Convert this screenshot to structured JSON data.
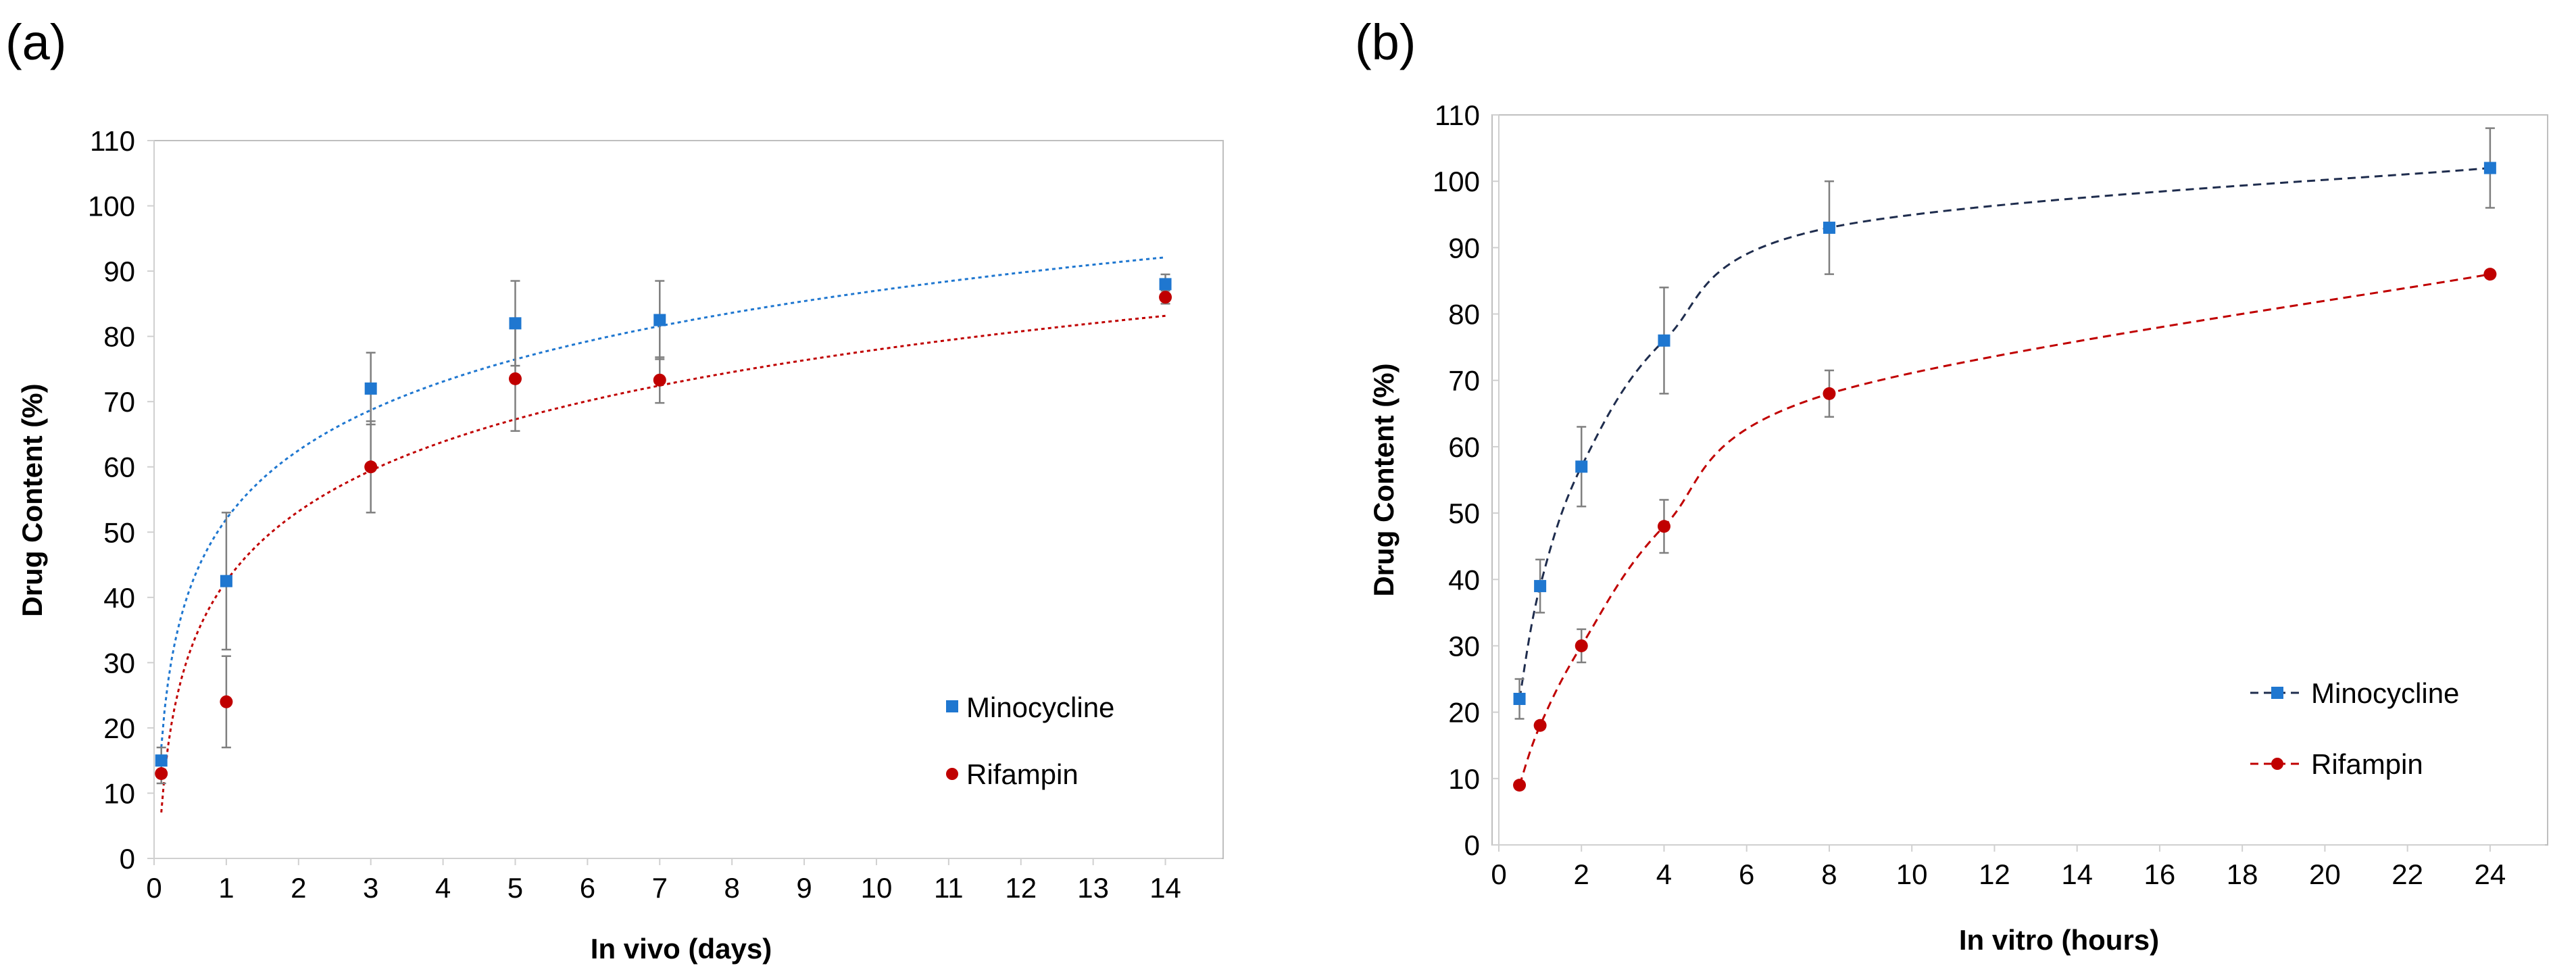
{
  "chart_data": [
    {
      "panel_label": "(a)",
      "type": "scatter",
      "xlabel": "In vivo (days)",
      "ylabel": "Drug Content (%)",
      "xlim": [
        0,
        14.5
      ],
      "ylim": [
        0,
        110
      ],
      "xticks": [
        0,
        1,
        2,
        3,
        4,
        5,
        6,
        7,
        8,
        9,
        10,
        11,
        12,
        13,
        14
      ],
      "yticks": [
        0,
        10,
        20,
        30,
        40,
        50,
        60,
        70,
        80,
        90,
        100,
        110
      ],
      "grid": false,
      "legend_position": "bottom-right",
      "trendline": "logarithmic, dotted",
      "series": [
        {
          "name": "Minocycline",
          "color": "#1f77d0",
          "marker": "square",
          "x": [
            0.1,
            1,
            3,
            5,
            7,
            14
          ],
          "y": [
            15,
            42.5,
            72,
            82,
            82.5,
            88
          ],
          "error": [
            2,
            10.5,
            5.5,
            6.5,
            6,
            1.5
          ],
          "trend": {
            "a": 52,
            "b": 15.2,
            "x_from": 0.1,
            "x_to": 14
          }
        },
        {
          "name": "Rifampin",
          "color": "#c00000",
          "marker": "circle",
          "x": [
            0.1,
            1,
            3,
            5,
            7,
            14
          ],
          "y": [
            13,
            24,
            60,
            73.5,
            73.3,
            86
          ],
          "error": [
            1.5,
            7,
            7,
            8,
            3.5,
            1
          ],
          "trend": {
            "a": 42.5,
            "b": 15.4,
            "x_from": 0.1,
            "x_to": 14
          }
        }
      ]
    },
    {
      "panel_label": "(b)",
      "type": "line",
      "xlabel": "In vitro (hours)",
      "ylabel": "Drug Content (%)",
      "xlim": [
        0,
        25
      ],
      "ylim": [
        0,
        110
      ],
      "xticks": [
        0,
        2,
        4,
        6,
        8,
        10,
        12,
        14,
        16,
        18,
        20,
        22,
        24
      ],
      "yticks": [
        0,
        10,
        20,
        30,
        40,
        50,
        60,
        70,
        80,
        90,
        100,
        110
      ],
      "grid": false,
      "legend_position": "bottom-right",
      "line_style": "dashed, smoothed",
      "series": [
        {
          "name": "Minocycline",
          "color": "#1f77d0",
          "line_color": "#1f2d4e",
          "marker": "square",
          "x": [
            0.5,
            1,
            2,
            4,
            8,
            24
          ],
          "y": [
            22,
            39,
            57,
            76,
            93,
            102
          ],
          "error": [
            3,
            4,
            6,
            8,
            7,
            6
          ]
        },
        {
          "name": "Rifampin",
          "color": "#c00000",
          "line_color": "#c00000",
          "marker": "circle",
          "x": [
            0.5,
            1,
            2,
            4,
            8,
            24
          ],
          "y": [
            9,
            18,
            30,
            48,
            68,
            86
          ],
          "error": [
            0,
            0,
            2.5,
            4,
            3.5,
            0
          ]
        }
      ]
    }
  ]
}
